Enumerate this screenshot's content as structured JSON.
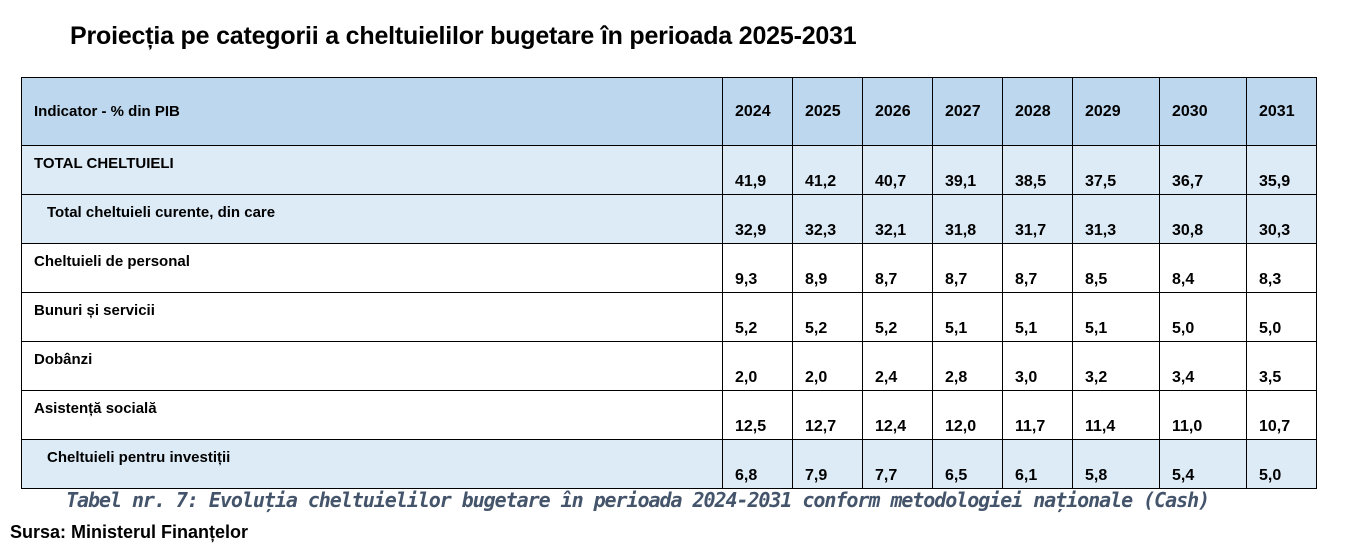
{
  "title": "Proiecția pe categorii a cheltuielilor bugetare în perioada 2025-2031",
  "table": {
    "header_label": "Indicator - % din PIB",
    "years": [
      "2024",
      "2025",
      "2026",
      "2027",
      "2028",
      "2029",
      "2030",
      "2031"
    ],
    "rows": [
      {
        "label": "TOTAL CHELTUIELI",
        "values": [
          "41,9",
          "41,2",
          "40,7",
          "39,1",
          "38,5",
          "37,5",
          "36,7",
          "35,9"
        ]
      },
      {
        "label": "Total cheltuieli curente, din care",
        "values": [
          "32,9",
          "32,3",
          "32,1",
          "31,8",
          "31,7",
          "31,3",
          "30,8",
          "30,3"
        ]
      },
      {
        "label": "Cheltuieli de personal",
        "values": [
          "9,3",
          "8,9",
          "8,7",
          "8,7",
          "8,7",
          "8,5",
          "8,4",
          "8,3"
        ]
      },
      {
        "label": "Bunuri și servicii",
        "values": [
          "5,2",
          "5,2",
          "5,2",
          "5,1",
          "5,1",
          "5,1",
          "5,0",
          "5,0"
        ]
      },
      {
        "label": "Dobânzi",
        "values": [
          "2,0",
          "2,0",
          "2,4",
          "2,8",
          "3,0",
          "3,2",
          "3,4",
          "3,5"
        ]
      },
      {
        "label": "Asistență socială",
        "values": [
          "12,5",
          "12,7",
          "12,4",
          "12,0",
          "11,7",
          "11,4",
          "11,0",
          "10,7"
        ]
      },
      {
        "label": "Cheltuieli pentru investiții",
        "values": [
          "6,8",
          "7,9",
          "7,7",
          "6,5",
          "6,1",
          "5,8",
          "5,4",
          "5,0"
        ]
      }
    ]
  },
  "caption": "Tabel nr. 7: Evoluția cheltuielilor bugetare în perioada 2024-2031 conform metodologiei naționale (Cash)",
  "source": "Sursa: Ministerul Finanțelor",
  "colors": {
    "header_fill": "#bdd7ee",
    "shaded_fill": "#ddebf7",
    "caption_text": "#44546a"
  }
}
